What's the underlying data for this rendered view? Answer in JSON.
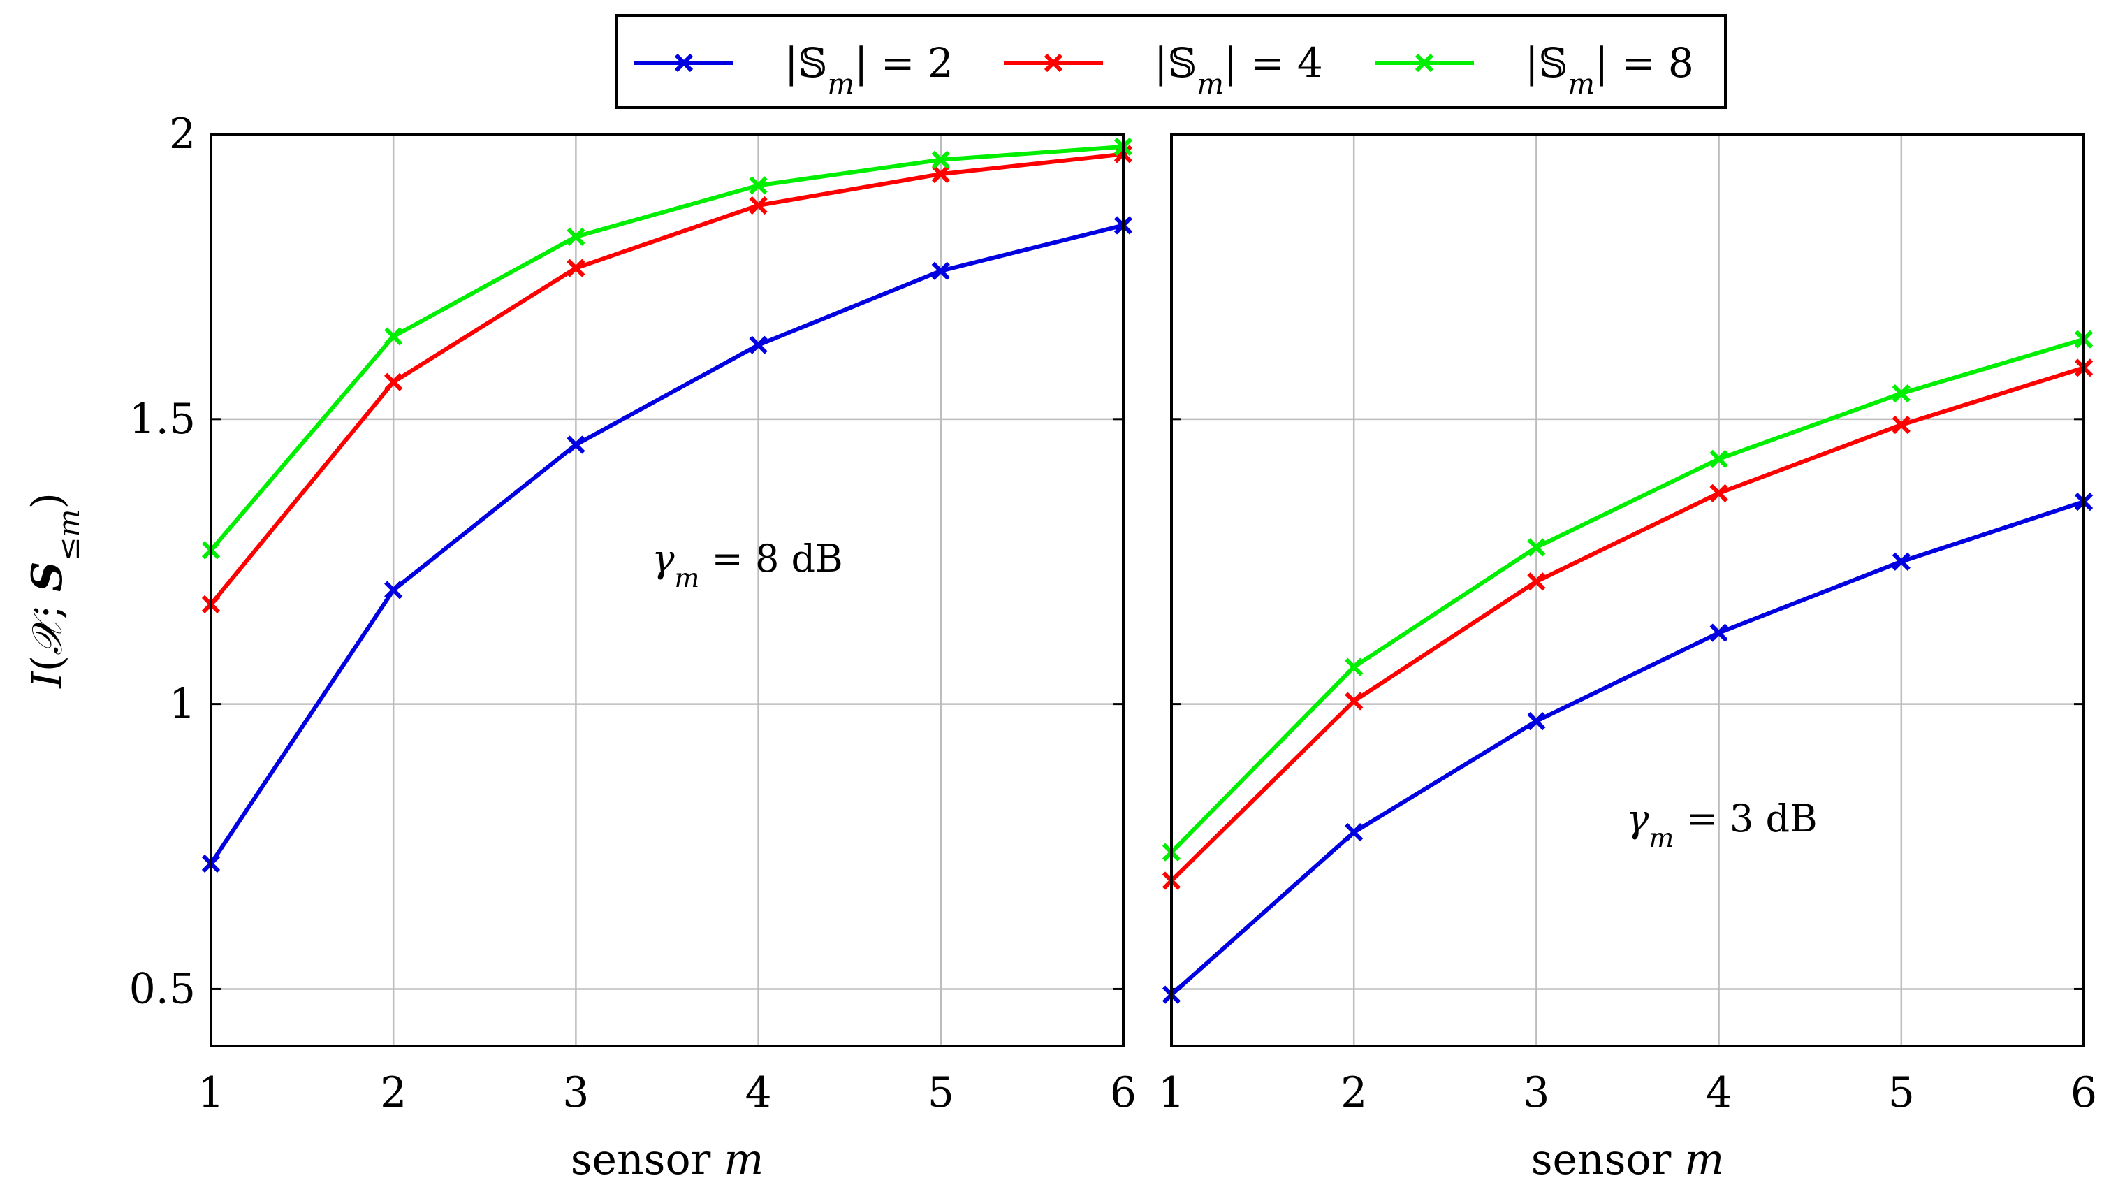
{
  "chart_data": [
    {
      "type": "line",
      "annotation": "γm = 8 dB",
      "xlabel": "sensor m",
      "ylabel": "I(X; S≤m)",
      "x": [
        1,
        2,
        3,
        4,
        5,
        6
      ],
      "xlim": [
        1,
        6
      ],
      "ylim": [
        0.4,
        2
      ],
      "yticks": [
        "0.5",
        "1",
        "1.5",
        "2"
      ],
      "xticks": [
        "1",
        "2",
        "3",
        "4",
        "5",
        "6"
      ],
      "grid": true,
      "series": [
        {
          "name": "|Sm| = 2",
          "color": "#0000e0",
          "values": [
            0.72,
            1.2,
            1.455,
            1.63,
            1.76,
            1.84
          ]
        },
        {
          "name": "|Sm| = 4",
          "color": "#ff0000",
          "values": [
            1.175,
            1.565,
            1.765,
            1.875,
            1.93,
            1.965
          ]
        },
        {
          "name": "|Sm| = 8",
          "color": "#00ee00",
          "values": [
            1.27,
            1.645,
            1.82,
            1.91,
            1.955,
            1.978
          ]
        }
      ]
    },
    {
      "type": "line",
      "annotation": "γm = 3 dB",
      "xlabel": "sensor m",
      "ylabel": "",
      "x": [
        1,
        2,
        3,
        4,
        5,
        6
      ],
      "xlim": [
        1,
        6
      ],
      "ylim": [
        0.4,
        2
      ],
      "yticks": [],
      "xticks": [
        "1",
        "2",
        "3",
        "4",
        "5",
        "6"
      ],
      "grid": true,
      "series": [
        {
          "name": "|Sm| = 2",
          "color": "#0000e0",
          "values": [
            0.49,
            0.775,
            0.97,
            1.125,
            1.25,
            1.355
          ]
        },
        {
          "name": "|Sm| = 4",
          "color": "#ff0000",
          "values": [
            0.69,
            1.005,
            1.215,
            1.37,
            1.49,
            1.59
          ]
        },
        {
          "name": "|Sm| = 8",
          "color": "#00ee00",
          "values": [
            0.74,
            1.065,
            1.275,
            1.43,
            1.545,
            1.64
          ]
        }
      ]
    }
  ],
  "legend": {
    "position": "top-center",
    "items": [
      {
        "label": "|Sm| = 2",
        "color": "#0000e0"
      },
      {
        "label": "|Sm| = 4",
        "color": "#ff0000"
      },
      {
        "label": "|Sm| = 8",
        "color": "#00ee00"
      }
    ]
  }
}
